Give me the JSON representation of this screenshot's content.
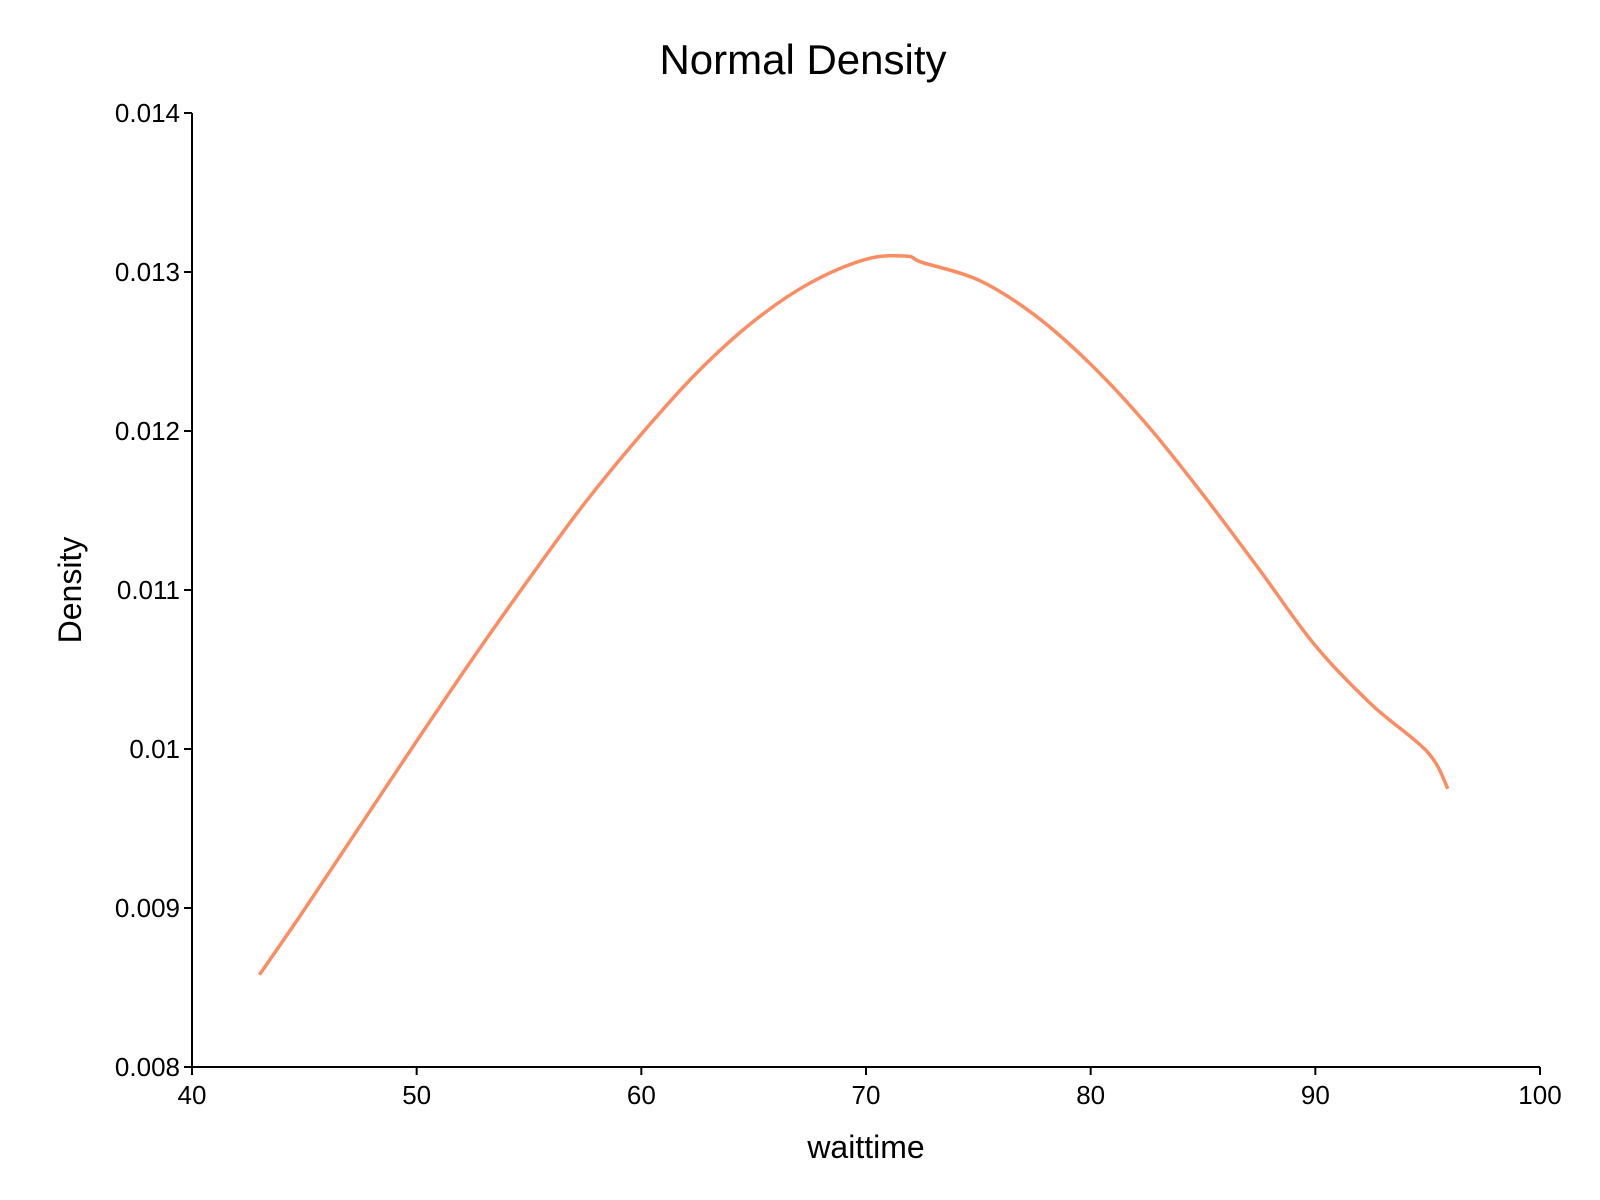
{
  "chart_data": {
    "type": "line",
    "title": "Normal Density",
    "xlabel": "waittime",
    "ylabel": "Density",
    "xlim": [
      40,
      100
    ],
    "ylim": [
      0.008,
      0.014
    ],
    "x_ticks": [
      40,
      50,
      60,
      70,
      80,
      90,
      100
    ],
    "x_tick_labels": [
      "40",
      "50",
      "60",
      "70",
      "80",
      "90",
      "100"
    ],
    "y_ticks": [
      0.008,
      0.009,
      0.01,
      0.011,
      0.012,
      0.013,
      0.014
    ],
    "y_tick_labels": [
      "0.008",
      "0.009",
      "0.01",
      "0.011",
      "0.012",
      "0.013",
      "0.014"
    ],
    "grid": false,
    "series": [
      {
        "color": "#fc8d62",
        "x": [
          43,
          45,
          47.5,
          50,
          52.5,
          55,
          57.5,
          60,
          62.5,
          65,
          67.5,
          70,
          71.8,
          72.5,
          75,
          77.5,
          80,
          82.5,
          85,
          87.5,
          90,
          92.5,
          95,
          95.9
        ],
        "y": [
          0.00858,
          0.00899,
          0.00952,
          0.01005,
          0.01057,
          0.01107,
          0.01155,
          0.01198,
          0.01237,
          0.01269,
          0.01293,
          0.01308,
          0.0131,
          0.01306,
          0.01295,
          0.01273,
          0.01242,
          0.01204,
          0.0116,
          0.01113,
          0.01065,
          0.01028,
          0.00998,
          0.00975
        ]
      }
    ]
  }
}
